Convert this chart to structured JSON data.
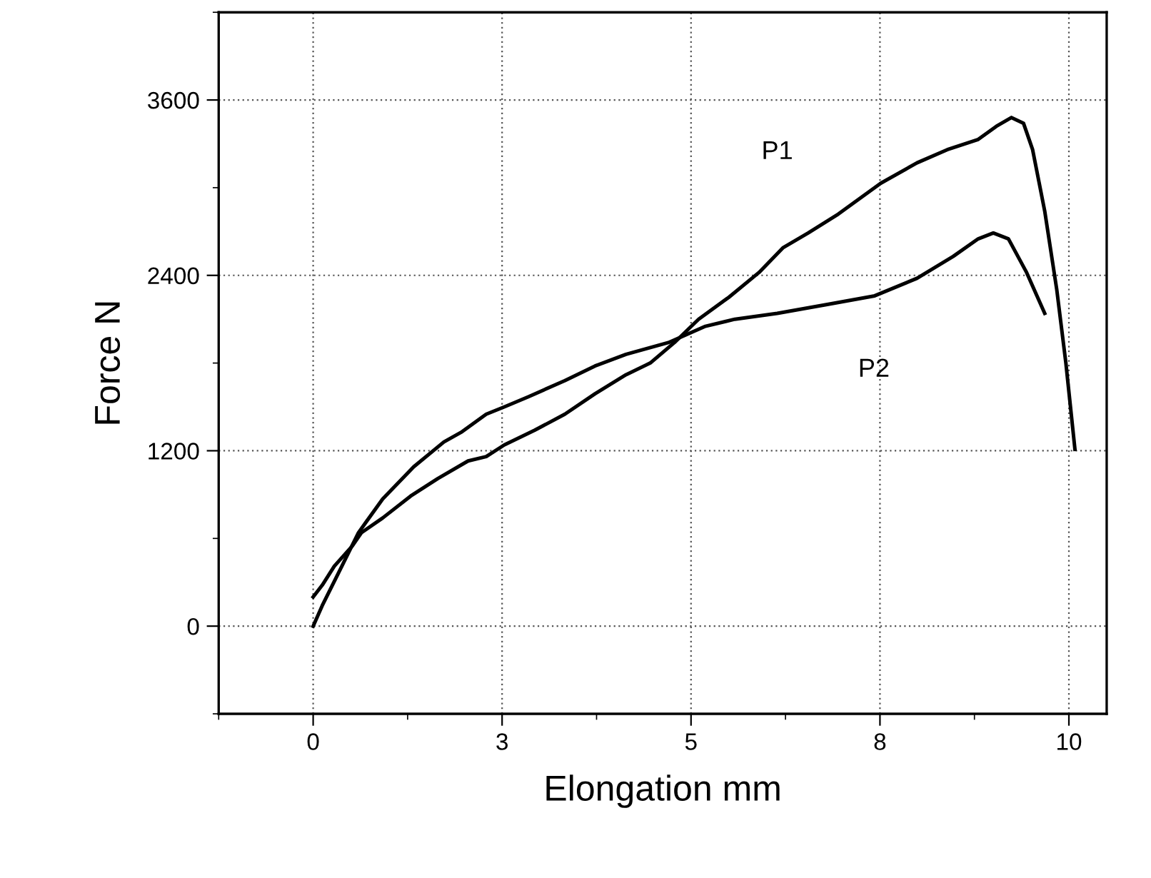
{
  "chart_data": {
    "type": "line",
    "xlabel": "Elongation mm",
    "ylabel": "Force N",
    "xlim": [
      -1.25,
      10.5
    ],
    "xticks": [
      0,
      {
        "value": 2.5,
        "label": "3"
      },
      5,
      {
        "value": 7.5,
        "label": "8"
      },
      10
    ],
    "ylim": [
      -600,
      4200
    ],
    "yticks": [
      0,
      1200,
      2400,
      3600
    ],
    "grid": true,
    "legend": false,
    "marker": "none",
    "line_style": "solid",
    "series": [
      {
        "name": "P1",
        "color": "#000000",
        "x": [
          0,
          0.12,
          0.28,
          0.52,
          0.64,
          0.92,
          1.29,
          1.65,
          2.05,
          2.29,
          2.53,
          2.93,
          3.33,
          3.73,
          4.14,
          4.46,
          4.78,
          5.1,
          5.5,
          5.9,
          6.22,
          6.55,
          6.95,
          7.51,
          7.99,
          8.39,
          8.8,
          9.04,
          9.24,
          9.4,
          9.52,
          9.68,
          9.84,
          9.96,
          10.08
        ],
        "values": [
          200,
          280,
          410,
          550,
          640,
          740,
          890,
          1010,
          1130,
          1160,
          1240,
          1340,
          1450,
          1590,
          1720,
          1800,
          1940,
          2100,
          2250,
          2420,
          2590,
          2690,
          2820,
          3030,
          3170,
          3260,
          3330,
          3420,
          3480,
          3440,
          3260,
          2840,
          2300,
          1800,
          1210
        ]
      },
      {
        "name": "P2",
        "color": "#000000",
        "x": [
          0,
          0.12,
          0.36,
          0.6,
          0.92,
          1.33,
          1.73,
          1.97,
          2.29,
          2.53,
          2.85,
          3.33,
          3.73,
          4.14,
          4.7,
          5.18,
          5.58,
          6.14,
          6.79,
          7.43,
          7.99,
          8.47,
          8.8,
          9.0,
          9.2,
          9.44,
          9.68
        ],
        "values": [
          0,
          140,
          390,
          640,
          870,
          1090,
          1260,
          1330,
          1450,
          1500,
          1570,
          1680,
          1780,
          1860,
          1940,
          2050,
          2100,
          2140,
          2200,
          2260,
          2380,
          2530,
          2650,
          2690,
          2650,
          2420,
          2140
        ]
      }
    ]
  }
}
